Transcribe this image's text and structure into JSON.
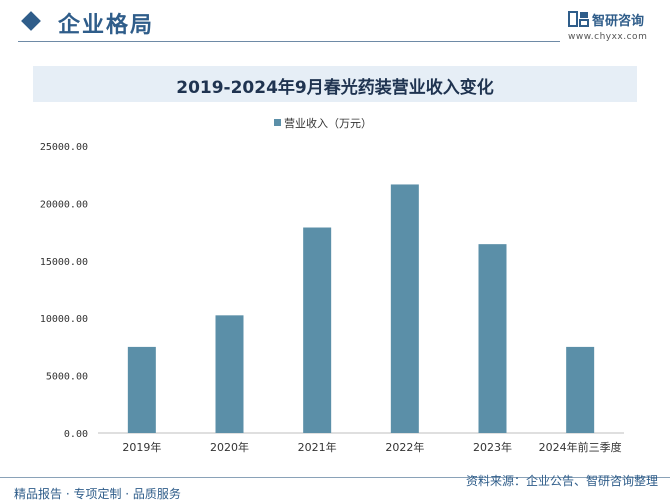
{
  "header": {
    "section_title": "企业格局",
    "logo_name": "智研咨询",
    "logo_url": "www.chyxx.com"
  },
  "footer": {
    "left": "精品报告 · 专项定制 · 品质服务",
    "right": "资料来源：企业公告、智研咨询整理"
  },
  "colors": {
    "bar": "#5b8fa8",
    "accent": "#2f5d8a",
    "title_band": "#e6eef6"
  },
  "chart_data": {
    "type": "bar",
    "title": "2019-2024年9月春光药装营业收入变化",
    "categories": [
      "2019年",
      "2020年",
      "2021年",
      "2022年",
      "2023年",
      "2024年前三季度"
    ],
    "series": [
      {
        "name": "营业收入（万元）",
        "values": [
          7500,
          10250,
          17900,
          21650,
          16450,
          7500
        ]
      }
    ],
    "ylim": [
      0,
      25000
    ],
    "yticks": [
      0,
      5000,
      10000,
      15000,
      20000,
      25000
    ],
    "ytick_labels": [
      "0.00",
      "5000.00",
      "10000.00",
      "15000.00",
      "20000.00",
      "25000.00"
    ],
    "grid": false,
    "legend_position": "top-center"
  }
}
